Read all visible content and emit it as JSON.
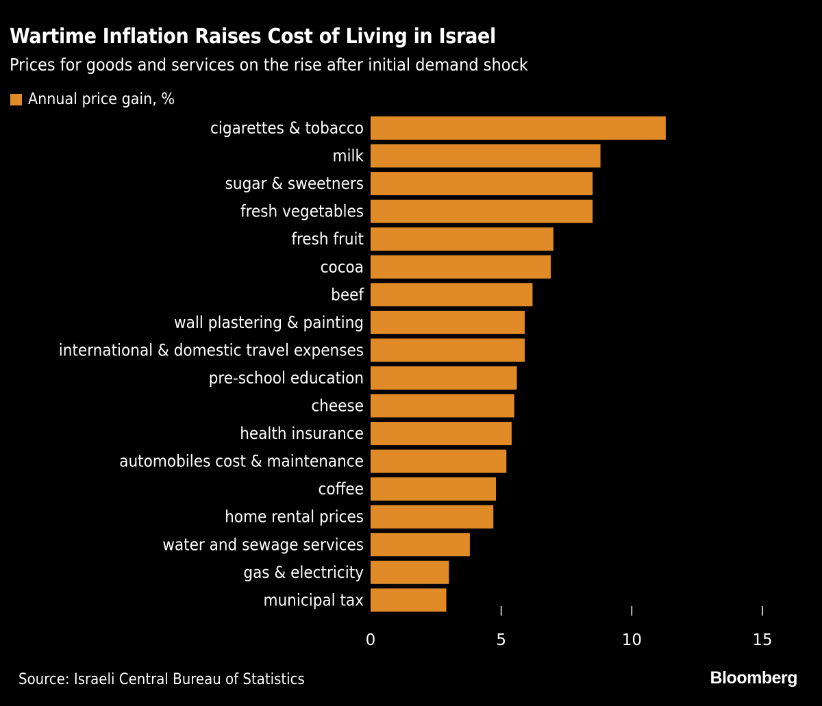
{
  "chart_data": {
    "type": "bar",
    "orientation": "horizontal",
    "title": "Wartime Inflation Raises Cost of Living in Israel",
    "subtitle": "Prices for goods and services on the rise after initial demand shock",
    "legend": [
      {
        "name": "Annual price gain, %",
        "color": "#e08b28"
      }
    ],
    "legend_position": "top-left",
    "categories": [
      "cigarettes & tobacco",
      "milk",
      "sugar & sweetners",
      "fresh vegetables",
      "fresh fruit",
      "cocoa",
      "beef",
      "wall plastering & painting",
      "international & domestic travel expenses",
      "pre-school education",
      "cheese",
      "health insurance",
      "automobiles cost & maintenance",
      "coffee",
      "home rental prices",
      "water and sewage services",
      "gas & electricity",
      "municipal tax"
    ],
    "series": [
      {
        "name": "Annual price gain, %",
        "values": [
          11.3,
          8.8,
          8.5,
          8.5,
          7.0,
          6.9,
          6.2,
          5.9,
          5.9,
          5.6,
          5.5,
          5.4,
          5.2,
          4.8,
          4.7,
          3.8,
          3.0,
          2.9
        ]
      }
    ],
    "xlabel": "",
    "ylabel": "",
    "xlim": [
      0,
      15
    ],
    "xticks": [
      0,
      5,
      10,
      15
    ],
    "xtick_labels": [
      "0",
      "5",
      "10",
      "15"
    ],
    "grid": false,
    "bar_color": "#e08b28",
    "source": "Source: Israeli Central Bureau of Statistics",
    "brand": "Bloomberg"
  }
}
